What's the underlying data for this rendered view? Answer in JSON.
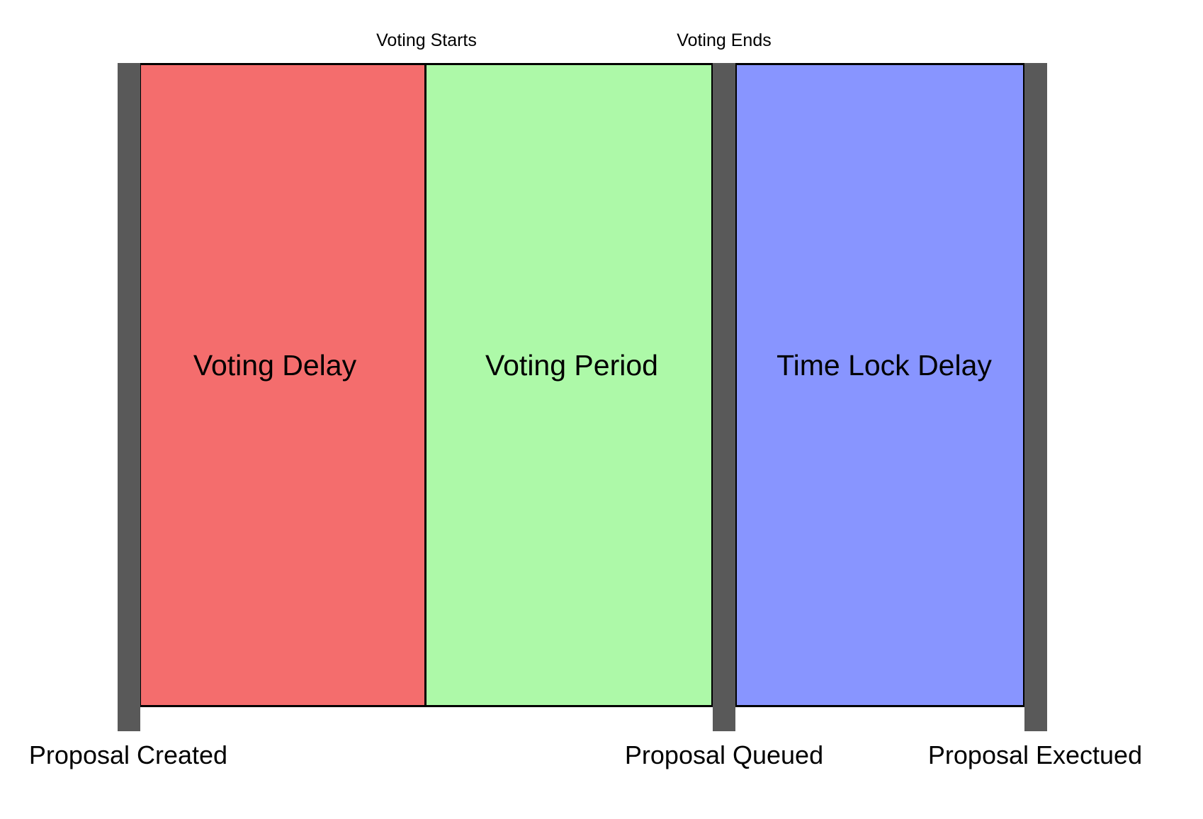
{
  "phases": [
    {
      "label": "Voting Delay",
      "color": "#f46d6d"
    },
    {
      "label": "Voting Period",
      "color": "#adf9a8"
    },
    {
      "label": "Time Lock Delay",
      "color": "#8895ff"
    }
  ],
  "top_labels": {
    "voting_starts": "Voting Starts",
    "voting_ends": "Voting Ends"
  },
  "bottom_labels": {
    "proposal_created": "Proposal Created",
    "proposal_queued": "Proposal Queued",
    "proposal_executed": "Proposal Exectued"
  },
  "colors": {
    "marker": "#595959",
    "border": "#000000"
  }
}
